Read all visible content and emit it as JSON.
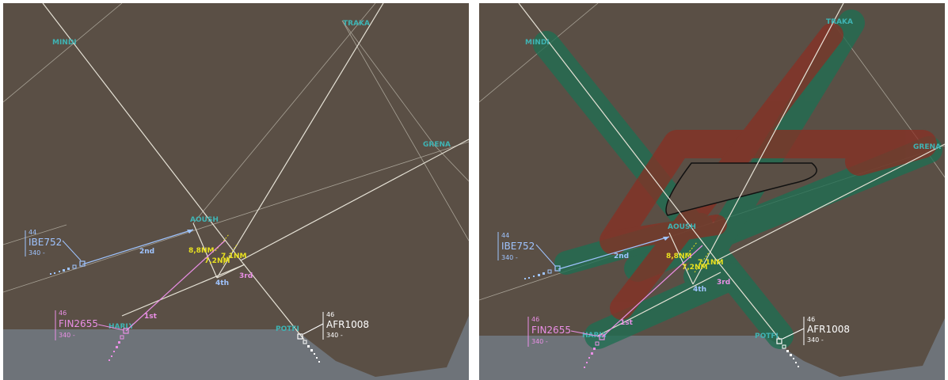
{
  "colors": {
    "background": "#5a4f45",
    "ground": "#6e7379",
    "airway": "#a8a296",
    "route": "#e6e2d6",
    "waypoint": "#3fb3b3",
    "ibe": "#9fc4ff",
    "fin": "#ea8fe6",
    "afr": "#ffffff",
    "distance": "#e8e020",
    "conflict_green": "#1f6e52",
    "conflict_red": "#8a2e22"
  },
  "waypoints": {
    "mindi": "MINDI",
    "traka": "TRAKA",
    "grena": "GRENA",
    "aoush": "AOUSH",
    "harly": "HARLY",
    "potfi": "POTFI"
  },
  "aircraft": {
    "ibe": {
      "callsign": "IBE752",
      "top": "44",
      "bottom": "340 -"
    },
    "fin": {
      "callsign": "FIN2655",
      "top": "46",
      "bottom": "340 -"
    },
    "afr": {
      "callsign": "AFR1008",
      "top": "46",
      "bottom": "340 -"
    }
  },
  "order_labels": {
    "first": "1st",
    "second": "2nd",
    "third": "3rd",
    "fourth": "4th"
  },
  "distances": {
    "d1": "8,8NM",
    "d2": "7,1NM",
    "d3": "7,2NM"
  },
  "icons": [
    "aircraft-position-icon",
    "track-history-icon",
    "waypoint-marker-icon"
  ]
}
